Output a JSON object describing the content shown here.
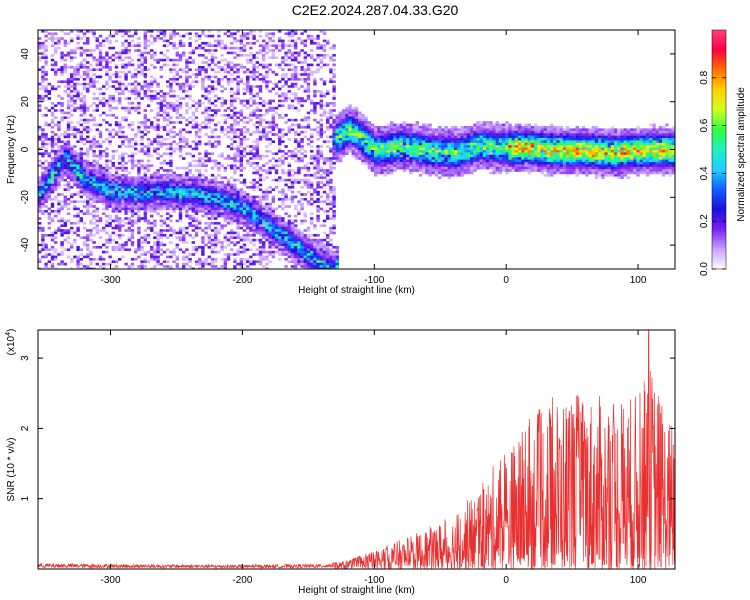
{
  "title": "C2E2.2024.287.04.33.G20",
  "chart_data": [
    {
      "type": "heatmap",
      "xlabel": "Height of straight line (km)",
      "ylabel": "Frequency (Hz)",
      "xlim": [
        -355,
        128
      ],
      "ylim": [
        -50,
        50
      ],
      "xticks": [
        -300,
        -200,
        -100,
        0,
        100
      ],
      "yticks": [
        -40,
        -20,
        0,
        20,
        40
      ],
      "colorbar": {
        "label": "Normalized spectral amplitude",
        "range": [
          0,
          1
        ],
        "ticks": [
          "0.0",
          "0.2",
          "0.4",
          "0.6",
          "0.8"
        ],
        "tick_values": [
          0,
          0.2,
          0.4,
          0.6,
          0.8
        ],
        "colors": [
          "#ffffff",
          "#c8a0ff",
          "#7a20f0",
          "#1a10e0",
          "#1060ff",
          "#20d0ff",
          "#20f0c0",
          "#30ff40",
          "#d0ff20",
          "#ffd000",
          "#ff7000",
          "#ff0040",
          "#ff4080"
        ]
      },
      "ridge_segments": [
        {
          "x": [
            -355,
            -345,
            -335,
            -320,
            -300,
            -280,
            -260,
            -240,
            -220,
            -200
          ],
          "y": [
            -18,
            -10,
            -3,
            -12,
            -17,
            -18,
            -17,
            -18,
            -20,
            -24
          ]
        },
        {
          "x": [
            -200,
            -185,
            -170,
            -160,
            -150,
            -140,
            -130
          ],
          "y": [
            -24,
            -30,
            -36,
            -40,
            -44,
            -48,
            -50
          ]
        },
        {
          "x": [
            -130,
            -120,
            -110,
            -100,
            -80,
            -60,
            -40,
            -20,
            0,
            20,
            40,
            60,
            80,
            100,
            128
          ],
          "y": [
            5,
            9,
            5,
            0,
            2,
            0,
            -1,
            2,
            1,
            1,
            0,
            0,
            -1,
            0,
            0
          ]
        }
      ],
      "noise_region": {
        "x_range": [
          -355,
          -130
        ],
        "y_range": [
          -50,
          50
        ]
      }
    },
    {
      "type": "line",
      "xlabel": "Height of straight line (km)",
      "ylabel": "SNR (10 * v/v)",
      "y_multiplier": "(x10",
      "y_multiplier_exp": "4",
      "y_multiplier_close": ")",
      "xlim": [
        -355,
        128
      ],
      "ylim": [
        0,
        3.4
      ],
      "xticks": [
        -300,
        -200,
        -100,
        0,
        100
      ],
      "yticks": [
        1,
        2,
        3
      ],
      "color": "#e83030",
      "envelope": {
        "x": [
          -355,
          -300,
          -200,
          -140,
          -120,
          -100,
          -80,
          -60,
          -40,
          -20,
          -10,
          0,
          20,
          40,
          60,
          80,
          100,
          110,
          120,
          128
        ],
        "y": [
          0.08,
          0.07,
          0.06,
          0.07,
          0.12,
          0.25,
          0.4,
          0.55,
          0.75,
          1.1,
          1.4,
          1.6,
          2.1,
          2.4,
          2.4,
          2.3,
          2.4,
          2.8,
          2.2,
          1.9
        ]
      },
      "peak": {
        "x": 108,
        "y": 3.4
      }
    }
  ]
}
